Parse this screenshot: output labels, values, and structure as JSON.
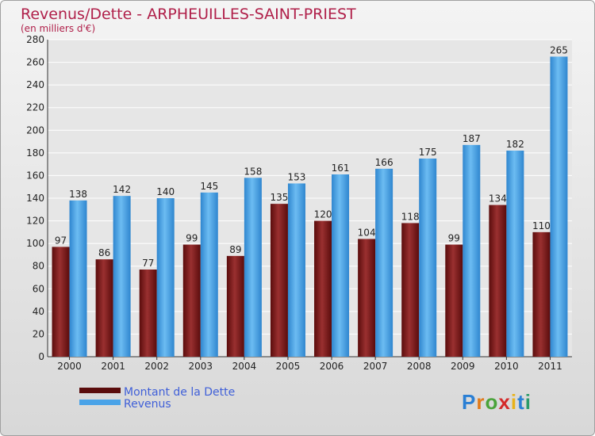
{
  "chart_data": {
    "type": "bar",
    "title": "Revenus/Dette - ARPHEUILLES-SAINT-PRIEST",
    "subtitle": "(en milliers d'€)",
    "categories": [
      "2000",
      "2001",
      "2002",
      "2003",
      "2004",
      "2005",
      "2006",
      "2007",
      "2008",
      "2009",
      "2010",
      "2011"
    ],
    "series": [
      {
        "name": "Montant de la Dette",
        "values": [
          97,
          86,
          77,
          99,
          89,
          135,
          120,
          104,
          118,
          99,
          134,
          110
        ],
        "color": "#7a1a1a"
      },
      {
        "name": "Revenus",
        "values": [
          138,
          142,
          140,
          145,
          158,
          153,
          161,
          166,
          175,
          187,
          182,
          265
        ],
        "color": "#4aa3e8"
      }
    ],
    "ylim": [
      0,
      280
    ],
    "yticks": [
      0,
      20,
      40,
      60,
      80,
      100,
      120,
      140,
      160,
      180,
      200,
      220,
      240,
      260,
      280
    ],
    "grid": true,
    "legend_position": "bottom-left"
  },
  "brand": {
    "logo_text": "Proxiti"
  }
}
